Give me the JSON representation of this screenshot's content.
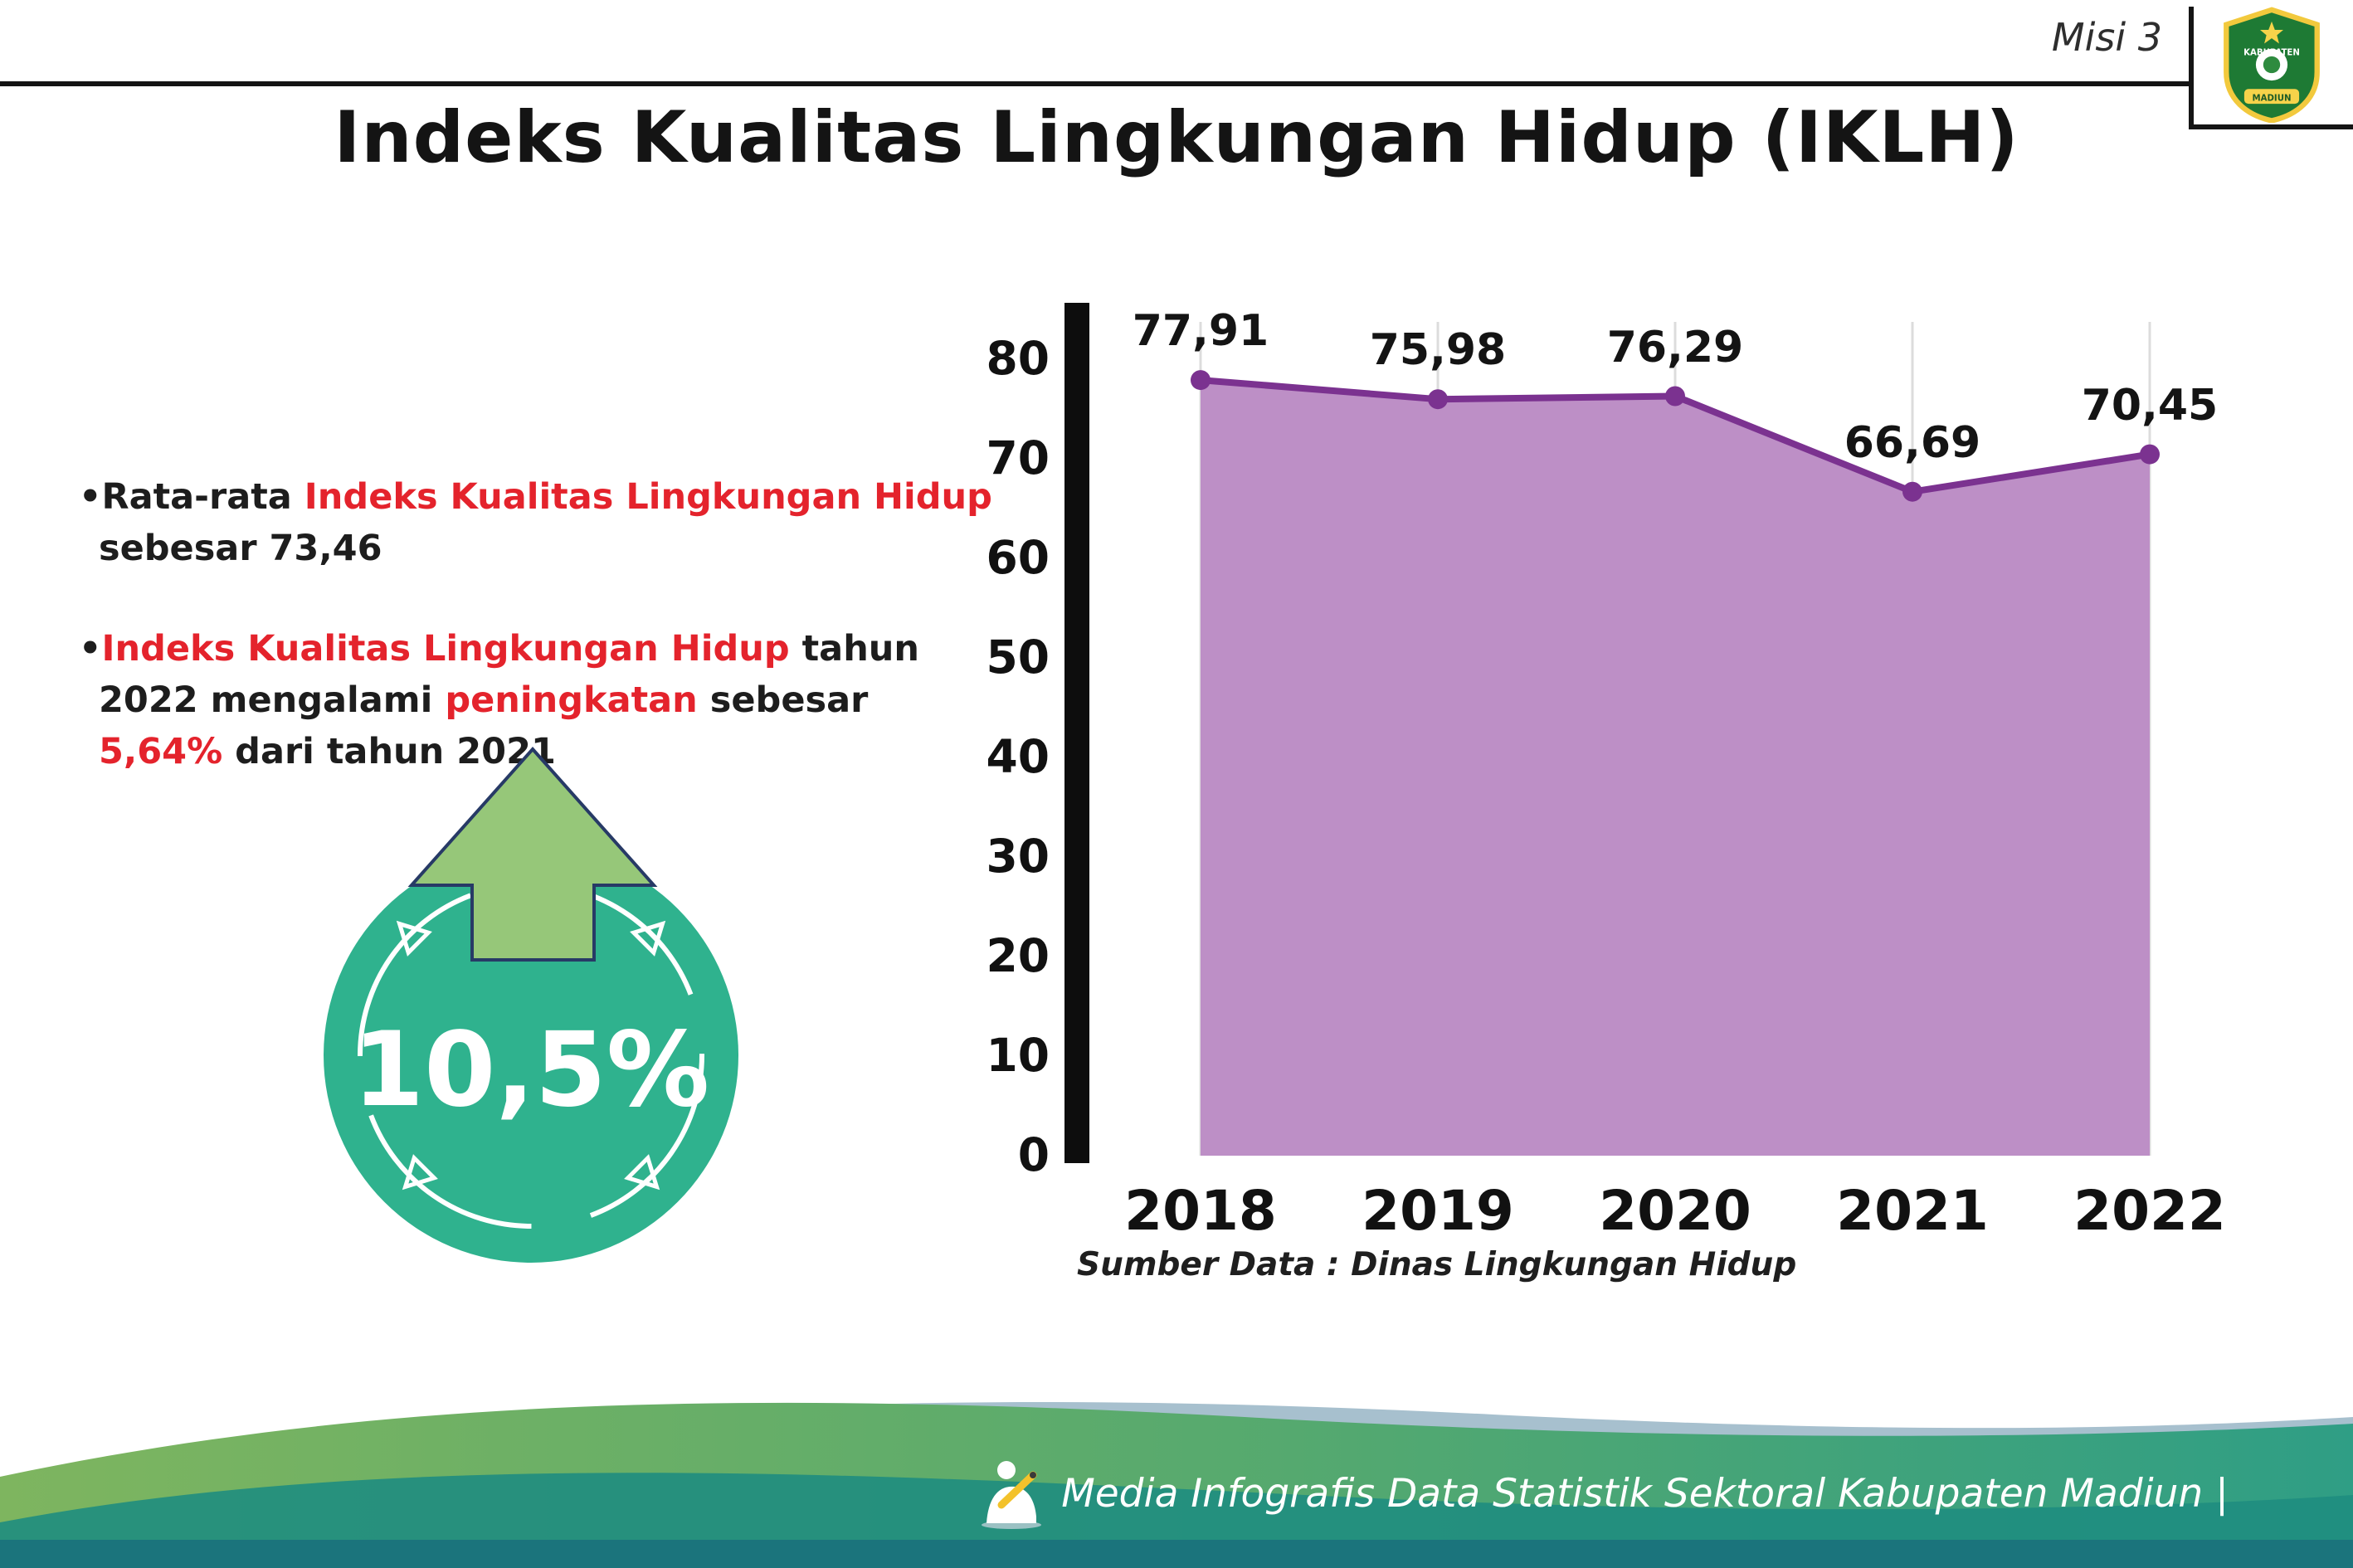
{
  "header": {
    "misi_label": "Misi 3",
    "title": "Indeks Kualitas Lingkungan Hidup (IKLH)",
    "logo": {
      "line1": "KABUPATEN",
      "line2": "MADIUN"
    }
  },
  "bullets": {
    "b1": {
      "s1": "•Rata-rata ",
      "s2": "Indeks Kualitas Lingkungan Hidup",
      "s3": " sebesar 73,46"
    },
    "b2": {
      "s1": "•",
      "s2": "Indeks Kualitas Lingkungan Hidup",
      "s3": " tahun 2022 mengalami ",
      "s4": "peningkatan",
      "s5": " sebesar ",
      "s6": "5,64%",
      "s7": " dari tahun 2021"
    }
  },
  "badge": {
    "value": "10,5%"
  },
  "chart_data": {
    "type": "area",
    "title": "",
    "categories": [
      "2018",
      "2019",
      "2020",
      "2021",
      "2022"
    ],
    "values": [
      77.91,
      75.98,
      76.29,
      66.69,
      70.45
    ],
    "point_labels": [
      "77,91",
      "75,98",
      "76,29",
      "66,69",
      "70,45"
    ],
    "ylim": [
      0,
      80
    ],
    "yticks": [
      0,
      10,
      20,
      30,
      40,
      50,
      60,
      70,
      80
    ],
    "grid": "light vertical gridlines at each category",
    "legend": "none",
    "area_fill": "#bd8fc6",
    "line_color": "#7b3290",
    "source_note": "Sumber Data : Dinas Lingkungan Hidup"
  },
  "footer": {
    "text": "Media Infografis Data Statistik Sektoral Kabupaten Madiun |"
  },
  "colors": {
    "accent_red": "#e4232c",
    "badge_teal": "#2fb28e",
    "arrow_green": "#96c779",
    "area_purple": "#bd8fc6",
    "line_purple": "#7b3290",
    "footer_teal": "#1b747c"
  }
}
